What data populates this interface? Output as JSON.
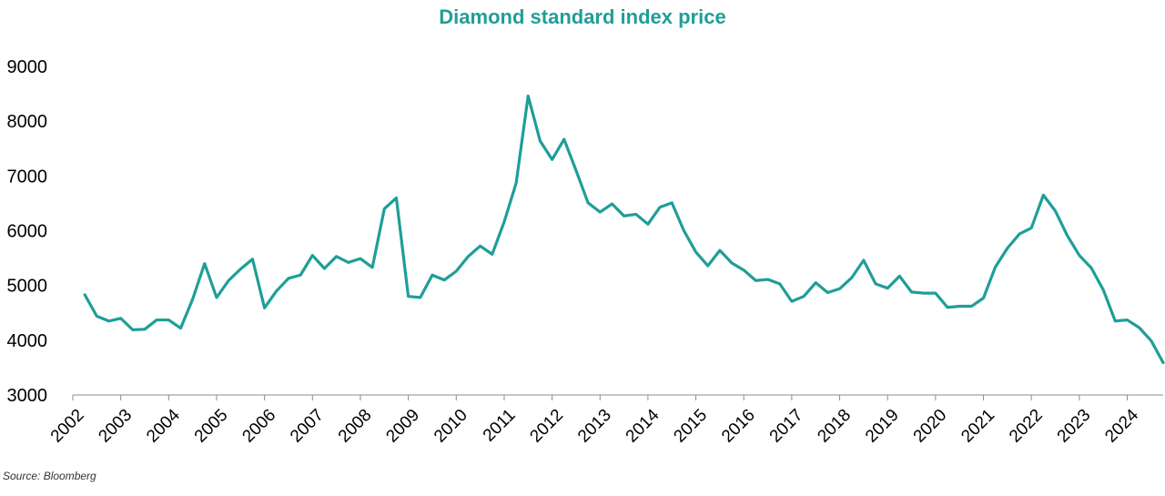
{
  "colors": {
    "line": "#1f9e98",
    "title": "#1f9e98",
    "axis": "#8c8c8c",
    "text": "#000000"
  },
  "source": "Source: Bloomberg",
  "chart_data": {
    "type": "line",
    "title": "Diamond standard index price",
    "xlabel": "",
    "ylabel": "",
    "ylim": [
      3000,
      9000
    ],
    "yticks": [
      3000,
      4000,
      5000,
      6000,
      7000,
      8000,
      9000
    ],
    "xlim": [
      2002,
      2024.75
    ],
    "xticks": [
      2002,
      2003,
      2004,
      2005,
      2006,
      2007,
      2008,
      2009,
      2010,
      2011,
      2012,
      2013,
      2014,
      2015,
      2016,
      2017,
      2018,
      2019,
      2020,
      2021,
      2022,
      2023,
      2024
    ],
    "xtick_labels": [
      "2002",
      "2003",
      "2004",
      "2005",
      "2006",
      "2007",
      "2008",
      "2009",
      "2010",
      "2011",
      "2012",
      "2013",
      "2014",
      "2015",
      "2016",
      "2017",
      "2018",
      "2019",
      "2020",
      "2021",
      "2022",
      "2023",
      "2024"
    ],
    "grid": false,
    "legend": "none",
    "series": [
      {
        "x": [
          2002.25,
          2002.5,
          2002.75,
          2003.0,
          2003.25,
          2003.5,
          2003.75,
          2004.0,
          2004.25,
          2004.5,
          2004.75,
          2005.0,
          2005.25,
          2005.5,
          2005.75,
          2006.0,
          2006.25,
          2006.5,
          2006.75,
          2007.0,
          2007.25,
          2007.5,
          2007.75,
          2008.0,
          2008.25,
          2008.5,
          2008.75,
          2009.0,
          2009.25,
          2009.5,
          2009.75,
          2010.0,
          2010.25,
          2010.5,
          2010.75,
          2011.0,
          2011.25,
          2011.5,
          2011.75,
          2012.0,
          2012.25,
          2012.5,
          2012.75,
          2013.0,
          2013.25,
          2013.5,
          2013.75,
          2014.0,
          2014.25,
          2014.5,
          2014.75,
          2015.0,
          2015.25,
          2015.5,
          2015.75,
          2016.0,
          2016.25,
          2016.5,
          2016.75,
          2017.0,
          2017.25,
          2017.5,
          2017.75,
          2018.0,
          2018.25,
          2018.5,
          2018.75,
          2019.0,
          2019.25,
          2019.5,
          2019.75,
          2020.0,
          2020.25,
          2020.5,
          2020.75,
          2021.0,
          2021.25,
          2021.5,
          2021.75,
          2022.0,
          2022.25,
          2022.5,
          2022.75,
          2023.0,
          2023.25,
          2023.5,
          2023.75,
          2024.0,
          2024.25,
          2024.5,
          2024.75
        ],
        "values": [
          4830,
          4440,
          4350,
          4400,
          4190,
          4200,
          4370,
          4370,
          4220,
          4750,
          5400,
          4780,
          5090,
          5300,
          5480,
          4590,
          4900,
          5130,
          5190,
          5550,
          5310,
          5530,
          5420,
          5490,
          5330,
          6400,
          6600,
          4800,
          4780,
          5190,
          5100,
          5260,
          5530,
          5720,
          5570,
          6160,
          6870,
          8460,
          7640,
          7300,
          7670,
          7100,
          6510,
          6340,
          6490,
          6270,
          6300,
          6120,
          6430,
          6510,
          6000,
          5610,
          5360,
          5640,
          5410,
          5280,
          5090,
          5110,
          5030,
          4710,
          4800,
          5050,
          4870,
          4940,
          5140,
          5460,
          5030,
          4950,
          5170,
          4880,
          4860,
          4860,
          4600,
          4620,
          4620,
          4770,
          5340,
          5680,
          5940,
          6050,
          6650,
          6360,
          5910,
          5550,
          5320,
          4920,
          4350,
          4370,
          4230,
          3990,
          3590
        ]
      }
    ]
  }
}
